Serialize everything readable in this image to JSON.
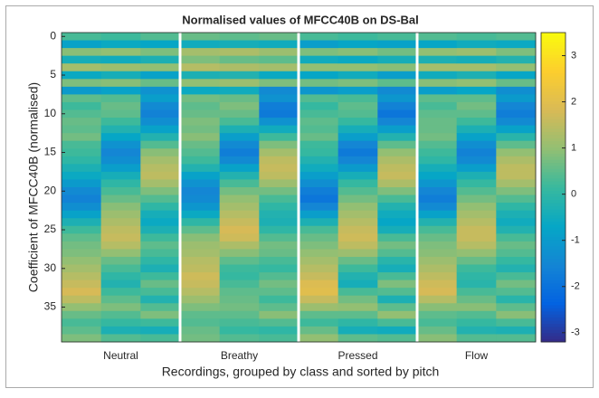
{
  "chart_data": {
    "type": "heatmap",
    "title": "Normalised values of MFCC40B on DS-Bal",
    "x_label": "Recordings, grouped by class and sorted by pitch",
    "y_label": "Coefficient of MFCC40B (normalised)",
    "ylim": [
      -0.5,
      39.5
    ],
    "yticks": [
      0,
      5,
      10,
      15,
      20,
      25,
      30,
      35
    ],
    "clim": [
      -3.2,
      3.5
    ],
    "cticks": [
      -3,
      -2,
      -1,
      0,
      1,
      2,
      3
    ],
    "colormap": [
      "#352a87",
      "#0363e1",
      "#1485d4",
      "#06a7c6",
      "#38b99e",
      "#92bf73",
      "#d9ba56",
      "#fcce2e",
      "#f9fb0e"
    ],
    "series": [
      {
        "name": "Neutral",
        "values": [
          [
            0.3,
            -0.8,
            0.9,
            -0.4,
            1.2,
            -0.6,
            0.8,
            -1.0,
            0.5,
            0.2,
            0.4,
            0.6,
            0.5,
            0.7,
            0.3,
            0.2,
            0,
            -0.3,
            -0.6,
            -1.0,
            -1.4,
            -1.6,
            -1.3,
            -0.8,
            -0.3,
            0.2,
            0.5,
            0.7,
            0.8,
            1.0,
            1.2,
            1.4,
            1.6,
            1.8,
            1.5,
            1.0,
            0.6,
            0.3,
            0.5,
            0.8
          ],
          [
            0.2,
            -0.6,
            1.0,
            -0.5,
            1.1,
            -0.4,
            0.9,
            -0.8,
            0.4,
            0.6,
            0.5,
            0.2,
            -0.2,
            -0.7,
            -1.2,
            -1.5,
            -1.3,
            -0.9,
            -0.4,
            0,
            0.3,
            0.6,
            0.9,
            1.1,
            1.3,
            1.5,
            1.6,
            1.4,
            1.0,
            0.6,
            0.3,
            0,
            -0.2,
            0.2,
            0.5,
            0.8,
            0.4,
            0.1,
            -0.3,
            0.4
          ],
          [
            0.4,
            -0.7,
            0.8,
            -0.3,
            1.0,
            -0.8,
            0.6,
            -1.2,
            -0.9,
            -1.4,
            -1.6,
            -1.3,
            -0.8,
            -0.2,
            0.4,
            0.9,
            1.2,
            1.4,
            1.5,
            1.2,
            0.8,
            0.4,
            0,
            -0.4,
            -0.6,
            -0.3,
            0.2,
            0.5,
            0.3,
            0,
            -0.3,
            0.2,
            0.6,
            0.3,
            -0.2,
            0.4,
            0.8,
            0.2,
            -0.4,
            0.3
          ]
        ]
      },
      {
        "name": "Breathy",
        "values": [
          [
            0.6,
            -0.5,
            1.2,
            0.8,
            1.4,
            -0.3,
            1.0,
            -0.6,
            0.7,
            0.5,
            0.6,
            0.8,
            0.7,
            0.9,
            0.6,
            0.4,
            0.2,
            -0.2,
            -0.8,
            -1.2,
            -1.5,
            -1.4,
            -1.1,
            -0.6,
            0,
            0.5,
            0.9,
            1.1,
            1.2,
            1.4,
            1.5,
            1.7,
            1.6,
            1.4,
            1.1,
            0.8,
            0.5,
            0.4,
            0.6,
            0.7
          ],
          [
            0.5,
            -0.4,
            1.3,
            0.6,
            1.3,
            -0.2,
            1.1,
            -0.5,
            0.6,
            0.8,
            0.6,
            0.3,
            -0.3,
            -0.9,
            -1.4,
            -1.7,
            -1.4,
            -0.8,
            -0.2,
            0.3,
            0.7,
            1.0,
            1.2,
            1.4,
            1.6,
            1.8,
            1.7,
            1.3,
            0.9,
            0.5,
            0.2,
            0.1,
            0.3,
            0.5,
            0.6,
            0.7,
            0.5,
            0.3,
            0.1,
            0.4
          ],
          [
            0.6,
            -0.5,
            1.1,
            0.5,
            1.2,
            -0.6,
            0.8,
            -1.4,
            -1.2,
            -1.7,
            -1.8,
            -1.2,
            -0.5,
            0.2,
            0.8,
            1.2,
            1.5,
            1.6,
            1.5,
            1.1,
            0.7,
            0.3,
            0,
            -0.2,
            -0.3,
            0,
            0.4,
            0.7,
            0.6,
            0.3,
            0.1,
            0.4,
            0.7,
            0.5,
            0.2,
            0.5,
            0.9,
            0.4,
            0,
            0.3
          ]
        ]
      },
      {
        "name": "Pressed",
        "values": [
          [
            0.3,
            -0.9,
            0.8,
            -0.5,
            1.0,
            -0.7,
            0.7,
            -1.1,
            0.4,
            0.1,
            0.3,
            0.5,
            0.4,
            0.6,
            0.2,
            0.1,
            -0.2,
            -0.5,
            -0.9,
            -1.3,
            -1.7,
            -1.9,
            -1.5,
            -0.9,
            -0.3,
            0.3,
            0.6,
            0.8,
            1.0,
            1.2,
            1.4,
            1.6,
            1.9,
            2.0,
            1.6,
            1.1,
            0.5,
            0.2,
            0.6,
            1.0
          ],
          [
            0.2,
            -0.7,
            0.9,
            -0.6,
            1.0,
            -0.5,
            0.8,
            -0.9,
            0.3,
            0.5,
            0.4,
            0.1,
            -0.4,
            -0.9,
            -1.5,
            -1.8,
            -1.5,
            -1.0,
            -0.4,
            0.1,
            0.4,
            0.7,
            1.0,
            1.2,
            1.4,
            1.6,
            1.7,
            1.5,
            1.1,
            0.6,
            0.2,
            -0.2,
            -0.4,
            0.3,
            0.7,
            1.0,
            0.5,
            0,
            -0.4,
            0.5
          ],
          [
            0.3,
            -0.8,
            0.7,
            -0.4,
            0.9,
            -0.9,
            0.5,
            -1.4,
            -1.1,
            -1.6,
            -1.9,
            -1.5,
            -0.9,
            -0.2,
            0.5,
            1.0,
            1.3,
            1.5,
            1.6,
            1.3,
            0.8,
            0.3,
            -0.2,
            -0.5,
            -0.7,
            -0.4,
            0.3,
            0.7,
            0.4,
            -0.1,
            -0.4,
            0.3,
            0.8,
            0.4,
            -0.3,
            0.5,
            1.0,
            0.3,
            -0.5,
            0.4
          ]
        ]
      },
      {
        "name": "Flow",
        "values": [
          [
            0.4,
            -0.7,
            1.0,
            -0.3,
            1.2,
            -0.5,
            0.9,
            -0.9,
            0.5,
            0.3,
            0.5,
            0.6,
            0.6,
            0.7,
            0.4,
            0.2,
            0,
            -0.4,
            -0.7,
            -1.1,
            -1.5,
            -1.7,
            -1.4,
            -0.8,
            -0.2,
            0.3,
            0.6,
            0.8,
            0.9,
            1.1,
            1.3,
            1.5,
            1.7,
            1.8,
            1.4,
            0.9,
            0.5,
            0.3,
            0.6,
            0.9
          ],
          [
            0.3,
            -0.5,
            1.1,
            -0.4,
            1.2,
            -0.3,
            1.0,
            -0.7,
            0.5,
            0.7,
            0.5,
            0.2,
            -0.3,
            -0.8,
            -1.3,
            -1.6,
            -1.4,
            -0.9,
            -0.3,
            0.1,
            0.4,
            0.7,
            1.0,
            1.2,
            1.4,
            1.6,
            1.6,
            1.4,
            1.0,
            0.6,
            0.2,
            0,
            -0.1,
            0.3,
            0.6,
            0.9,
            0.4,
            0.1,
            -0.2,
            0.4
          ],
          [
            0.4,
            -0.6,
            0.8,
            -0.2,
            1.0,
            -0.7,
            0.6,
            -1.3,
            -1.0,
            -1.5,
            -1.7,
            -1.4,
            -0.8,
            -0.1,
            0.5,
            1.0,
            1.3,
            1.5,
            1.5,
            1.2,
            0.8,
            0.4,
            0,
            -0.3,
            -0.5,
            -0.2,
            0.3,
            0.6,
            0.4,
            0.1,
            -0.2,
            0.3,
            0.7,
            0.4,
            -0.1,
            0.5,
            0.9,
            0.3,
            -0.3,
            0.4
          ]
        ]
      }
    ]
  }
}
